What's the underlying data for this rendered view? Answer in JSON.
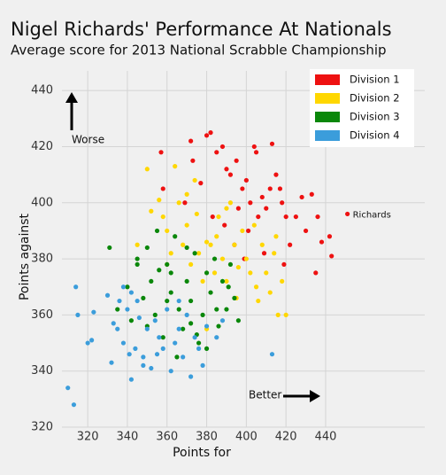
{
  "chart_data": {
    "type": "scatter",
    "title": "Nigel Richards' Performance At Nationals",
    "subtitle": "Average score for 2013 National Scrabble Championship",
    "x_label": "Points for",
    "y_label": "Points against",
    "xlim": [
      307,
      490
    ],
    "xticks": [
      320,
      340,
      360,
      380,
      400,
      420,
      440
    ],
    "ylim": [
      320,
      447
    ],
    "yticks": [
      320,
      340,
      360,
      380,
      400,
      420,
      440
    ],
    "grid": true,
    "legend": "upper right",
    "annotations": {
      "worse": "Worse",
      "better": "Better",
      "richards": "Richards"
    },
    "series": [
      {
        "name": "Division 1",
        "color": "#ee1111",
        "x": [
          357,
          358,
          372,
          373,
          380,
          382,
          385,
          388,
          390,
          392,
          395,
          398,
          400,
          402,
          404,
          406,
          408,
          410,
          412,
          415,
          418,
          420,
          422,
          425,
          428,
          430,
          433,
          436,
          438,
          442,
          443,
          451,
          389,
          394,
          399,
          405,
          413,
          417,
          383,
          377,
          369,
          396,
          401,
          409,
          419,
          435
        ],
        "values": [
          418,
          405,
          422,
          415,
          424,
          425,
          418,
          420,
          412,
          410,
          415,
          405,
          408,
          400,
          420,
          395,
          402,
          398,
          405,
          410,
          400,
          395,
          385,
          395,
          402,
          390,
          403,
          395,
          386,
          388,
          381,
          396,
          392,
          385,
          380,
          418,
          421,
          405,
          395,
          407,
          400,
          398,
          390,
          382,
          378,
          375
        ]
      },
      {
        "name": "Division 2",
        "color": "#ffd700",
        "x": [
          345,
          350,
          352,
          356,
          358,
          360,
          362,
          364,
          366,
          368,
          370,
          372,
          374,
          376,
          378,
          380,
          382,
          384,
          386,
          388,
          390,
          392,
          394,
          396,
          398,
          400,
          402,
          404,
          406,
          408,
          410,
          412,
          414,
          416,
          418,
          420,
          370,
          375,
          385,
          395,
          405,
          360,
          380,
          390,
          415
        ],
        "values": [
          385,
          412,
          397,
          401,
          395,
          390,
          382,
          413,
          400,
          385,
          392,
          378,
          408,
          382,
          372,
          386,
          385,
          375,
          395,
          380,
          372,
          400,
          385,
          377,
          390,
          380,
          375,
          392,
          365,
          385,
          375,
          368,
          382,
          360,
          372,
          360,
          403,
          396,
          388,
          366,
          370,
          378,
          355,
          398,
          388
        ]
      },
      {
        "name": "Division 3",
        "color": "#0a870a",
        "x": [
          331,
          335,
          340,
          342,
          345,
          348,
          350,
          352,
          354,
          356,
          358,
          360,
          362,
          364,
          366,
          368,
          370,
          372,
          374,
          376,
          378,
          380,
          382,
          384,
          386,
          388,
          390,
          392,
          394,
          396,
          355,
          365,
          375,
          385,
          360,
          370,
          380,
          350,
          345,
          362,
          372,
          391
        ],
        "values": [
          384,
          362,
          370,
          358,
          378,
          366,
          384,
          372,
          360,
          376,
          352,
          378,
          368,
          388,
          362,
          355,
          372,
          365,
          382,
          350,
          360,
          375,
          368,
          380,
          356,
          372,
          362,
          378,
          366,
          358,
          390,
          345,
          353,
          362,
          365,
          384,
          348,
          356,
          380,
          375,
          357,
          370
        ]
      },
      {
        "name": "Division 4",
        "color": "#3b9ddb",
        "x": [
          310,
          313,
          314,
          315,
          320,
          322,
          323,
          330,
          332,
          335,
          336,
          338,
          340,
          341,
          342,
          344,
          345,
          346,
          348,
          350,
          352,
          354,
          356,
          358,
          360,
          362,
          364,
          366,
          368,
          370,
          372,
          374,
          376,
          378,
          380,
          385,
          388,
          342,
          348,
          355,
          366,
          413,
          333,
          338
        ],
        "values": [
          334,
          328,
          370,
          360,
          350,
          351,
          361,
          367,
          343,
          355,
          365,
          350,
          362,
          346,
          337,
          348,
          365,
          359,
          345,
          355,
          341,
          358,
          352,
          348,
          362,
          340,
          350,
          355,
          345,
          360,
          338,
          352,
          348,
          342,
          356,
          352,
          358,
          368,
          342,
          346,
          365,
          346,
          357,
          370
        ]
      }
    ]
  }
}
